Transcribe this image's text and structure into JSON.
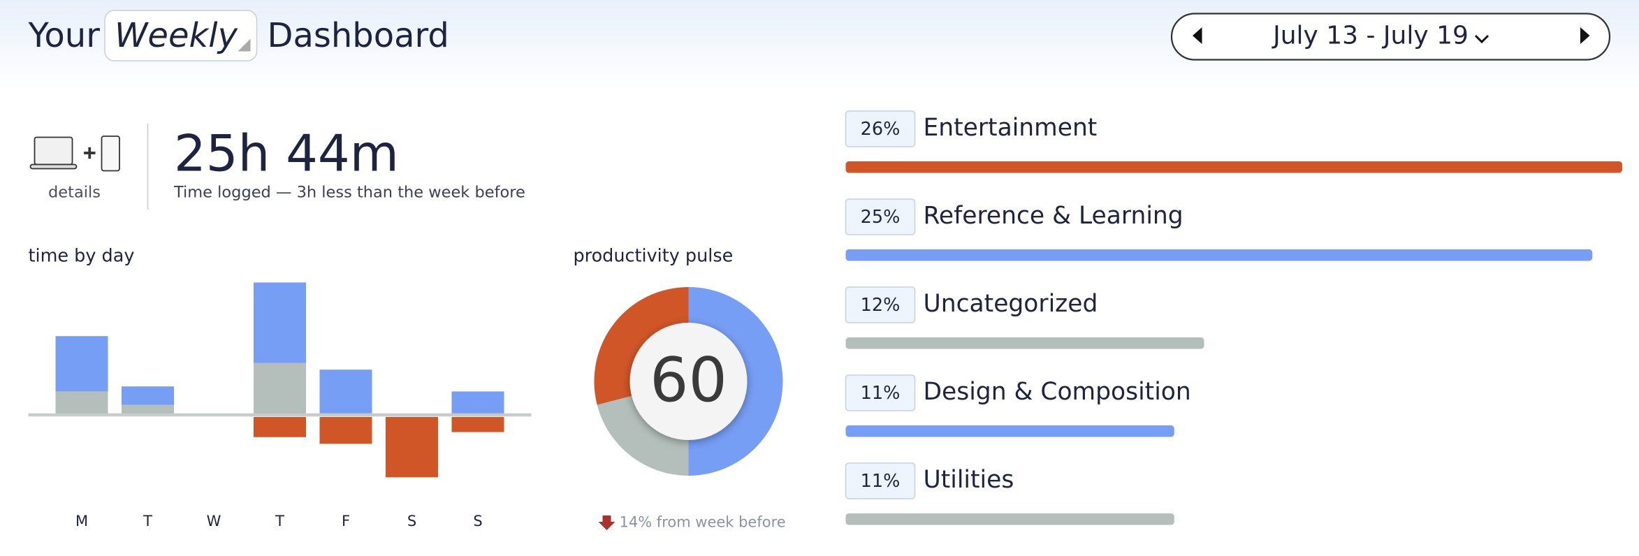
{
  "header": {
    "prefix": "Your",
    "period": "Weekly",
    "suffix": "Dashboard",
    "date_range": "July 13 - July 19"
  },
  "summary": {
    "device_label": "details",
    "total": "25h 44m",
    "subtitle": "Time logged — 3h less than the week before"
  },
  "chart_data": [
    {
      "type": "bar",
      "title": "time by day",
      "stacked": true,
      "categories": [
        "M",
        "T",
        "W",
        "T",
        "F",
        "S",
        "S"
      ],
      "series": [
        {
          "color": "#b4bfbb",
          "values": [
            1.4,
            0.6,
            0,
            3.1,
            0,
            0,
            0
          ]
        },
        {
          "color": "#779ef5",
          "values": [
            3.3,
            1.1,
            0,
            4.8,
            2.7,
            0,
            1.4
          ]
        },
        {
          "color": "#d05627",
          "values": [
            0,
            0,
            0,
            -1.2,
            -1.6,
            -3.6,
            -0.9
          ]
        }
      ],
      "ylim": [
        -4.5,
        8.5
      ]
    },
    {
      "type": "pie",
      "title": "productivity pulse",
      "values": [
        50,
        21,
        29
      ],
      "colors": [
        "#779ef5",
        "#b4bfbb",
        "#d05627"
      ],
      "center_label": 60,
      "note": "14% from week before"
    },
    {
      "type": "hbar",
      "categories": [
        "Entertainment",
        "Reference & Learning",
        "Uncategorized",
        "Design & Composition",
        "Utilities"
      ],
      "values": [
        26,
        25,
        12,
        11,
        11
      ],
      "value_labels": [
        "26%",
        "25%",
        "12%",
        "11%",
        "11%"
      ],
      "colors": [
        "#d05627",
        "#779ef5",
        "#b4bfbb",
        "#779ef5",
        "#b4bfbb"
      ],
      "xlim": [
        0,
        26
      ]
    }
  ]
}
